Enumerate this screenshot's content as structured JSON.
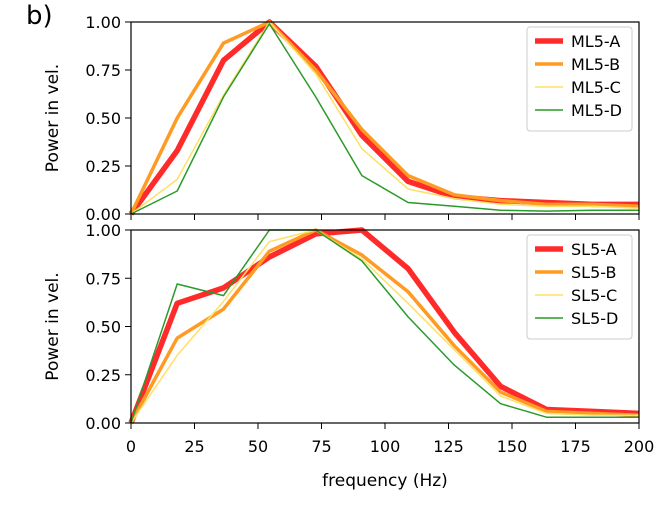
{
  "figure": {
    "panel_label": "b)"
  },
  "chart_data": [
    {
      "type": "line",
      "panel": "top",
      "title": "",
      "xlabel": "",
      "ylabel": "Power in vel.",
      "xlim": [
        0,
        200
      ],
      "ylim": [
        0,
        1.0
      ],
      "xticks": [
        0,
        25,
        50,
        75,
        100,
        125,
        150,
        175,
        200
      ],
      "yticks": [
        0.0,
        0.25,
        0.5,
        0.75,
        1.0
      ],
      "ytick_labels": [
        "0.00",
        "0.25",
        "0.50",
        "0.75",
        "1.00"
      ],
      "show_xtick_labels": false,
      "legend": "top-right",
      "x": [
        0,
        18.2,
        36.4,
        54.5,
        72.7,
        90.9,
        109.1,
        127.3,
        145.5,
        163.6,
        181.8,
        200
      ],
      "series": [
        {
          "name": "ML5-A",
          "color": "#ff2a2a",
          "width": 5.5,
          "values": [
            0,
            0.33,
            0.8,
            1.0,
            0.77,
            0.41,
            0.17,
            0.09,
            0.07,
            0.06,
            0.05,
            0.05
          ]
        },
        {
          "name": "ML5-B",
          "color": "#ff9a22",
          "width": 3.5,
          "values": [
            0,
            0.5,
            0.89,
            1.0,
            0.75,
            0.44,
            0.2,
            0.1,
            0.07,
            0.05,
            0.05,
            0.04
          ]
        },
        {
          "name": "ML5-C",
          "color": "#ffe066",
          "width": 1.5,
          "values": [
            0,
            0.18,
            0.62,
            1.0,
            0.73,
            0.34,
            0.13,
            0.08,
            0.05,
            0.04,
            0.04,
            0.03
          ]
        },
        {
          "name": "ML5-D",
          "color": "#2a9a2a",
          "width": 1.5,
          "values": [
            0,
            0.12,
            0.61,
            0.99,
            0.61,
            0.2,
            0.06,
            0.04,
            0.02,
            0.015,
            0.02,
            0.02
          ]
        }
      ]
    },
    {
      "type": "line",
      "panel": "bottom",
      "title": "",
      "xlabel": "frequency (Hz)",
      "ylabel": "Power in vel.",
      "xlim": [
        0,
        200
      ],
      "ylim": [
        0,
        1.0
      ],
      "xticks": [
        0,
        25,
        50,
        75,
        100,
        125,
        150,
        175,
        200
      ],
      "xtick_labels": [
        "0",
        "25",
        "50",
        "75",
        "100",
        "125",
        "150",
        "175",
        "200"
      ],
      "yticks": [
        0.0,
        0.25,
        0.5,
        0.75,
        1.0
      ],
      "ytick_labels": [
        "0.00",
        "0.25",
        "0.50",
        "0.75",
        "1.00"
      ],
      "show_xtick_labels": true,
      "legend": "top-right",
      "x": [
        0,
        18.2,
        36.4,
        54.5,
        72.7,
        90.9,
        109.1,
        127.3,
        145.5,
        163.6,
        181.8,
        200
      ],
      "series": [
        {
          "name": "SL5-A",
          "color": "#ff2a2a",
          "width": 5.5,
          "values": [
            0,
            0.62,
            0.7,
            0.86,
            0.98,
            1.0,
            0.8,
            0.47,
            0.19,
            0.07,
            0.06,
            0.05
          ]
        },
        {
          "name": "SL5-B",
          "color": "#ff9a22",
          "width": 3.5,
          "values": [
            0,
            0.44,
            0.59,
            0.89,
            1.0,
            0.87,
            0.68,
            0.4,
            0.16,
            0.06,
            0.05,
            0.04
          ]
        },
        {
          "name": "SL5-C",
          "color": "#ffe066",
          "width": 1.5,
          "values": [
            0,
            0.35,
            0.63,
            0.94,
            1.0,
            0.85,
            0.62,
            0.38,
            0.14,
            0.05,
            0.04,
            0.04
          ]
        },
        {
          "name": "SL5-D",
          "color": "#2a9a2a",
          "width": 1.5,
          "values": [
            0,
            0.72,
            0.66,
            1.0,
            1.0,
            0.84,
            0.55,
            0.3,
            0.1,
            0.03,
            0.03,
            0.03
          ]
        }
      ]
    }
  ]
}
